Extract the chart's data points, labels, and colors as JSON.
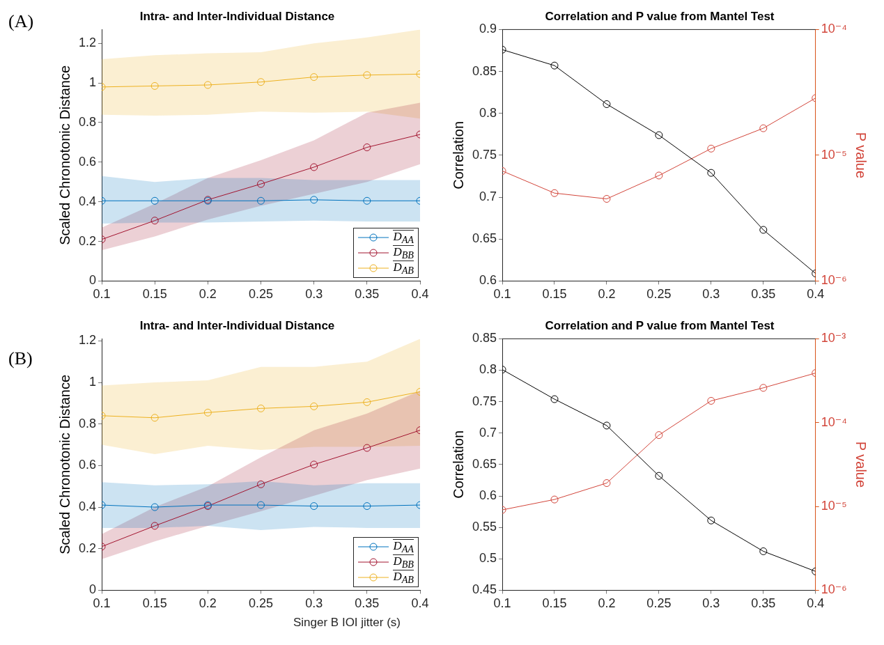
{
  "chart_data": [
    {
      "type": "line",
      "title": "Intra- and Inter-Individual Distance",
      "ylabel": "Scaled Chronotonic Distance",
      "annotations": [
        "(A)"
      ],
      "x": [
        0.1,
        0.15,
        0.2,
        0.25,
        0.3,
        0.35,
        0.4
      ],
      "xlim": [
        0.1,
        0.4
      ],
      "xticks": [
        0.1,
        0.15,
        0.2,
        0.25,
        0.3,
        0.35,
        0.4
      ],
      "ylim": [
        0,
        1.27
      ],
      "yticks": [
        0,
        0.2,
        0.4,
        0.6,
        0.8,
        1,
        1.2
      ],
      "grid": false,
      "legend": "bottom right",
      "marker": "circle",
      "series": [
        {
          "name": "D$_{AA}$",
          "color": "#0072bd",
          "values": [
            0.405,
            0.405,
            0.405,
            0.405,
            0.41,
            0.405,
            0.405
          ],
          "lower": [
            0.29,
            0.295,
            0.295,
            0.3,
            0.305,
            0.3,
            0.3
          ],
          "upper": [
            0.53,
            0.5,
            0.52,
            0.52,
            0.51,
            0.51,
            0.51
          ]
        },
        {
          "name": "D$_{BB}$",
          "color": "#a2142f",
          "values": [
            0.21,
            0.305,
            0.41,
            0.49,
            0.575,
            0.675,
            0.74
          ],
          "lower": [
            0.155,
            0.225,
            0.31,
            0.38,
            0.44,
            0.5,
            0.59
          ],
          "upper": [
            0.27,
            0.39,
            0.52,
            0.61,
            0.71,
            0.85,
            0.9
          ]
        },
        {
          "name": "D$_{AB}$",
          "color": "#edb120",
          "values": [
            0.98,
            0.985,
            0.99,
            1.005,
            1.03,
            1.04,
            1.045
          ],
          "lower": [
            0.84,
            0.835,
            0.84,
            0.855,
            0.85,
            0.855,
            0.82
          ],
          "upper": [
            1.12,
            1.14,
            1.15,
            1.155,
            1.2,
            1.23,
            1.27
          ]
        }
      ]
    },
    {
      "type": "line",
      "title": "Correlation and P value from Mantel Test",
      "ylabel": "Correlation",
      "y2label": "P value",
      "x": [
        0.1,
        0.15,
        0.2,
        0.25,
        0.3,
        0.35,
        0.4
      ],
      "xlim": [
        0.1,
        0.4
      ],
      "xticks": [
        0.1,
        0.15,
        0.2,
        0.25,
        0.3,
        0.35,
        0.4
      ],
      "ylim": [
        0.6,
        0.9
      ],
      "yticks": [
        0.6,
        0.65,
        0.7,
        0.75,
        0.8,
        0.85,
        0.9
      ],
      "y2lim": [
        1e-06,
        0.0001
      ],
      "y2ticks": [
        {
          "value": 1e-06,
          "label": "10⁻⁶"
        },
        {
          "value": 1e-05,
          "label": "10⁻⁵"
        },
        {
          "value": 0.0001,
          "label": "10⁻⁴"
        }
      ],
      "log": "y2",
      "grid": false,
      "marker": "circle",
      "series": [
        {
          "color": "#000000",
          "values": [
            0.876,
            0.857,
            0.811,
            0.774,
            0.729,
            0.661,
            0.609
          ]
        },
        {
          "color": "#d2453a",
          "axis": "y2",
          "values": [
            7.5e-06,
            5e-06,
            4.5e-06,
            6.9e-06,
            1.13e-05,
            1.64e-05,
            2.85e-05
          ]
        }
      ]
    },
    {
      "type": "line",
      "title": "Intra- and Inter-Individual Distance",
      "ylabel": "Scaled Chronotonic Distance",
      "xlabel": "Singer B IOI jitter (s)",
      "annotations": [
        "(B)"
      ],
      "x": [
        0.1,
        0.15,
        0.2,
        0.25,
        0.3,
        0.35,
        0.4
      ],
      "xlim": [
        0.1,
        0.4
      ],
      "xticks": [
        0.1,
        0.15,
        0.2,
        0.25,
        0.3,
        0.35,
        0.4
      ],
      "ylim": [
        0,
        1.21
      ],
      "yticks": [
        0,
        0.2,
        0.4,
        0.6,
        0.8,
        1,
        1.2
      ],
      "grid": false,
      "legend": "bottom right",
      "marker": "circle",
      "series": [
        {
          "name": "D$_{AA}$",
          "color": "#0072bd",
          "values": [
            0.41,
            0.4,
            0.41,
            0.41,
            0.405,
            0.405,
            0.41
          ],
          "lower": [
            0.3,
            0.3,
            0.31,
            0.29,
            0.305,
            0.3,
            0.3
          ],
          "upper": [
            0.52,
            0.505,
            0.51,
            0.525,
            0.505,
            0.515,
            0.515
          ]
        },
        {
          "name": "D$_{BB}$",
          "color": "#a2142f",
          "values": [
            0.21,
            0.31,
            0.405,
            0.51,
            0.605,
            0.685,
            0.77
          ],
          "lower": [
            0.15,
            0.235,
            0.31,
            0.38,
            0.455,
            0.53,
            0.585
          ],
          "upper": [
            0.27,
            0.4,
            0.5,
            0.64,
            0.77,
            0.85,
            0.96
          ]
        },
        {
          "name": "D$_{AB}$",
          "color": "#edb120",
          "values": [
            0.84,
            0.83,
            0.855,
            0.875,
            0.885,
            0.905,
            0.955
          ],
          "lower": [
            0.7,
            0.655,
            0.695,
            0.675,
            0.69,
            0.69,
            0.695
          ],
          "upper": [
            0.985,
            1,
            1.01,
            1.075,
            1.075,
            1.1,
            1.21
          ]
        }
      ]
    },
    {
      "type": "line",
      "title": "Correlation and P value from Mantel Test",
      "ylabel": "Correlation",
      "y2label": "P value",
      "x": [
        0.1,
        0.15,
        0.2,
        0.25,
        0.3,
        0.35,
        0.4
      ],
      "xlim": [
        0.1,
        0.4
      ],
      "xticks": [
        0.1,
        0.15,
        0.2,
        0.25,
        0.3,
        0.35,
        0.4
      ],
      "ylim": [
        0.45,
        0.85
      ],
      "yticks": [
        0.45,
        0.5,
        0.55,
        0.6,
        0.65,
        0.7,
        0.75,
        0.8,
        0.85
      ],
      "y2lim": [
        1e-06,
        0.001
      ],
      "y2ticks": [
        {
          "value": 1e-06,
          "label": "10⁻⁶"
        },
        {
          "value": 1e-05,
          "label": "10⁻⁵"
        },
        {
          "value": 0.0001,
          "label": "10⁻⁴"
        },
        {
          "value": 0.001,
          "label": "10⁻³"
        }
      ],
      "log": "y2",
      "grid": false,
      "marker": "circle",
      "series": [
        {
          "color": "#000000",
          "values": [
            0.801,
            0.754,
            0.712,
            0.632,
            0.561,
            0.512,
            0.48
          ]
        },
        {
          "color": "#d2453a",
          "axis": "y2",
          "values": [
            9.1e-06,
            1.21e-05,
            1.9e-05,
            7.1e-05,
            0.000182,
            0.00026,
            0.00039
          ]
        }
      ]
    }
  ]
}
